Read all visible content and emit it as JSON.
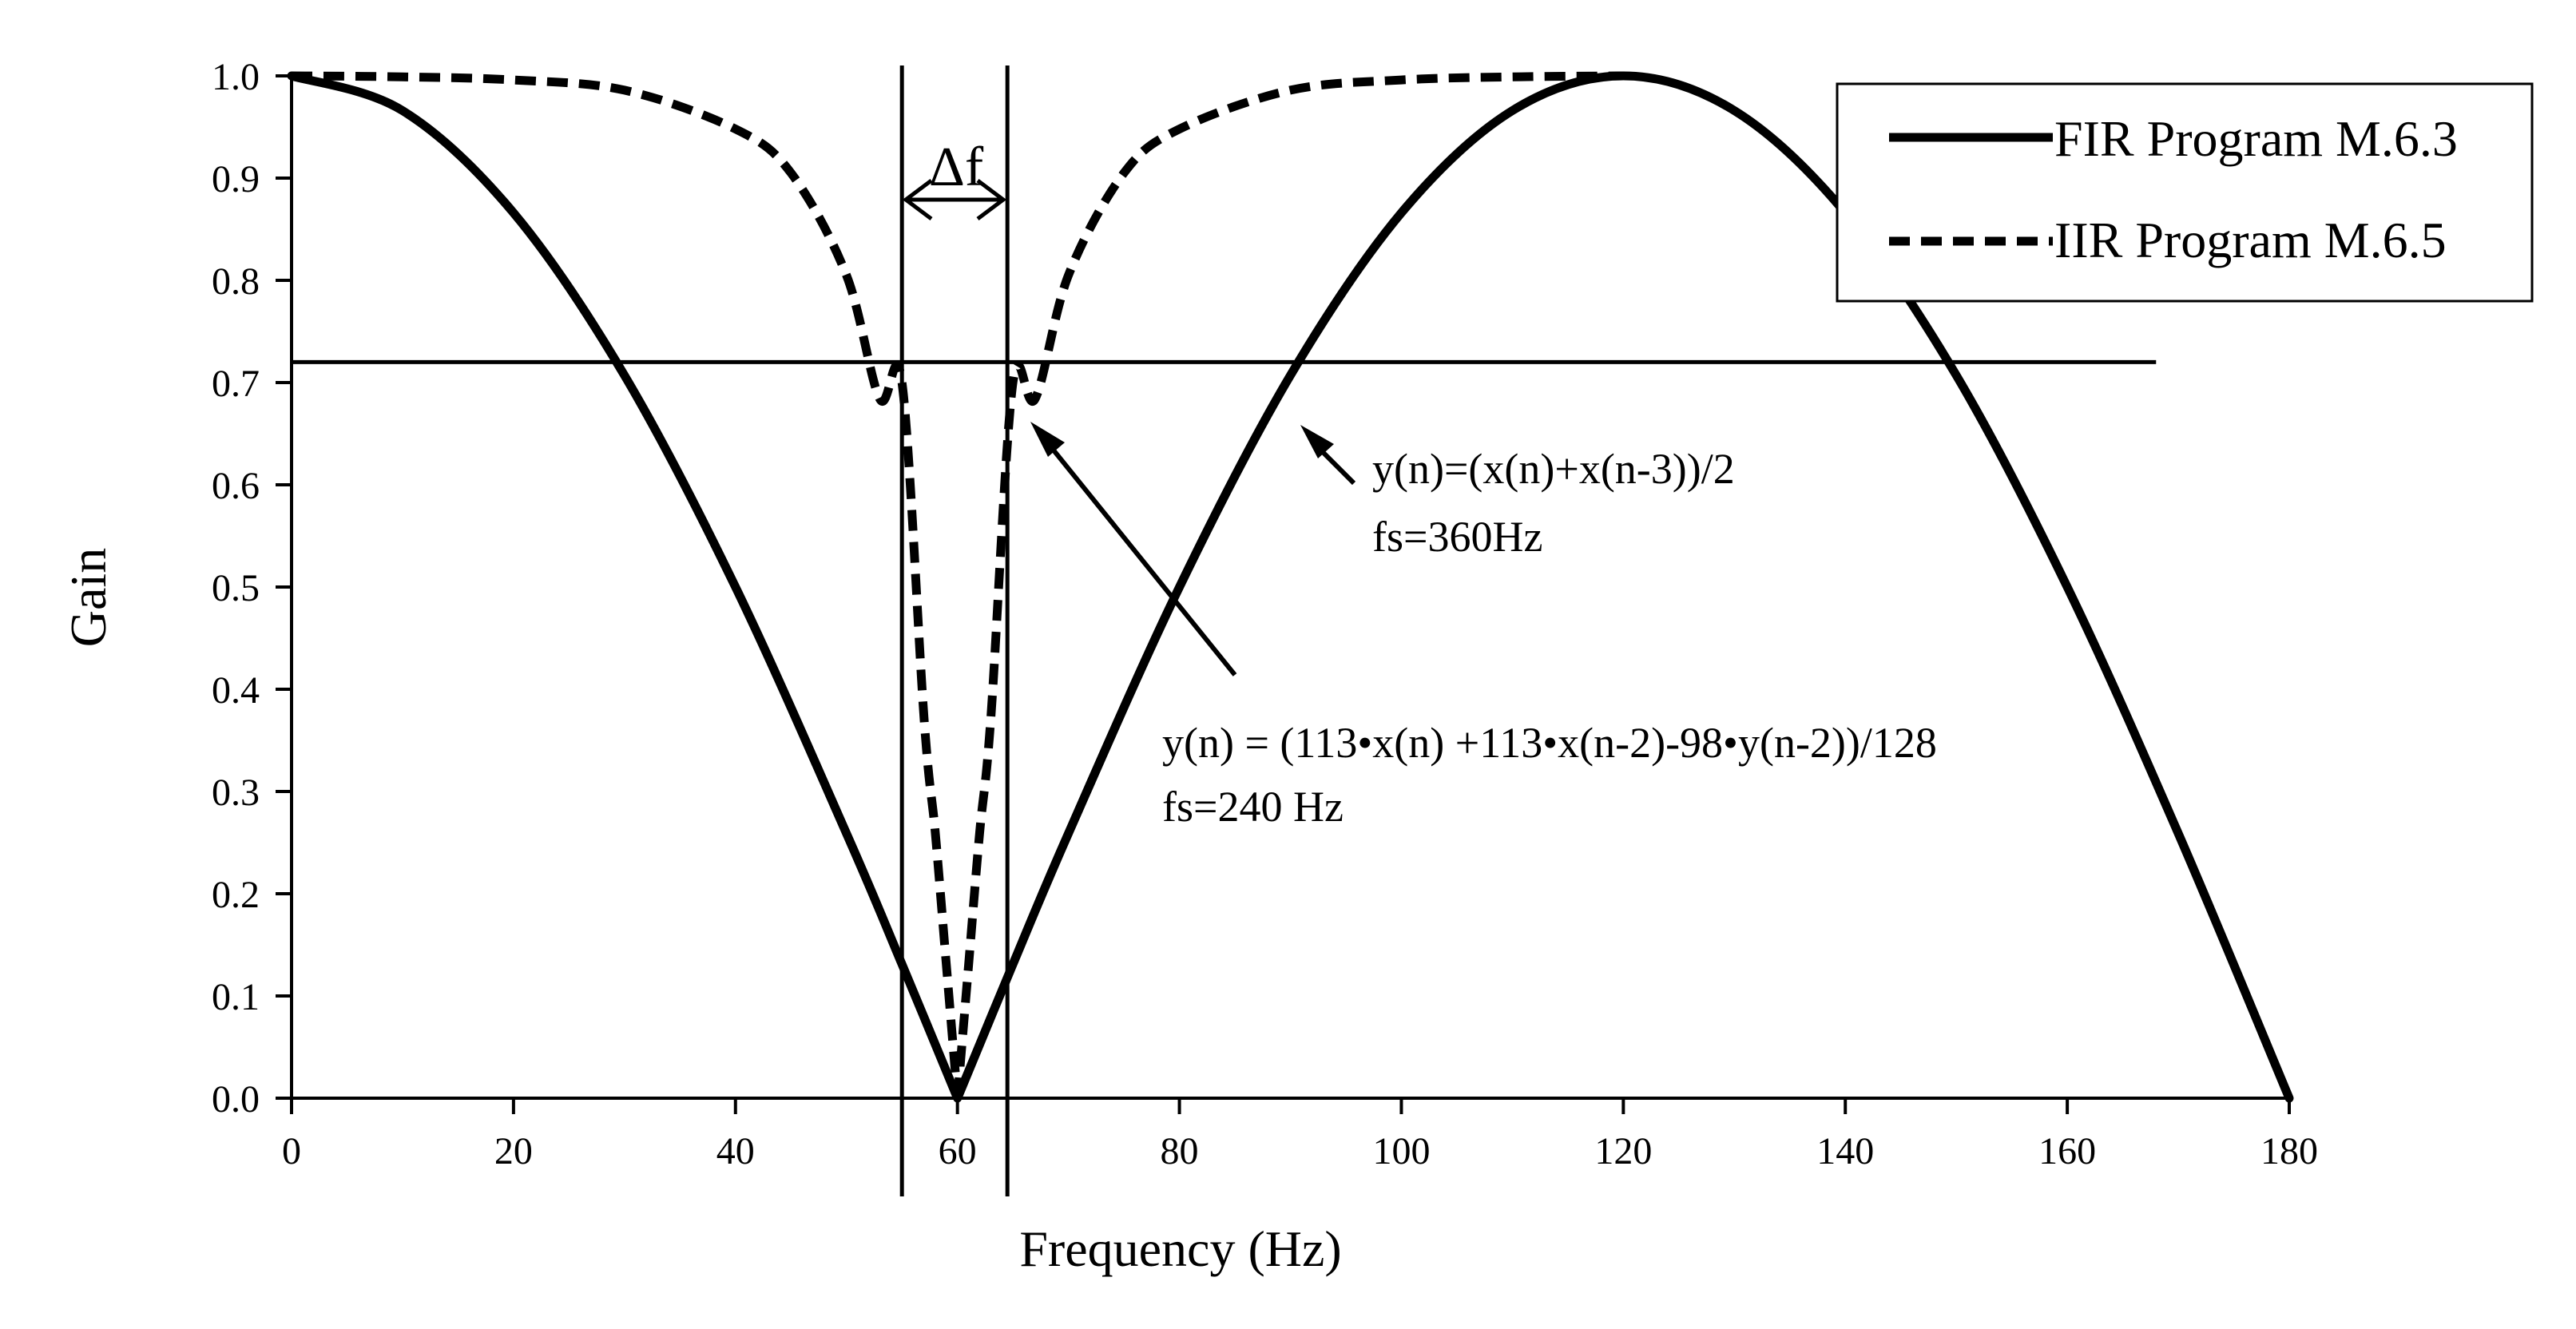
{
  "chart_data": {
    "type": "line",
    "title": "",
    "xlabel": "Frequency (Hz)",
    "ylabel": "Gain",
    "xlim": [
      0,
      180
    ],
    "ylim": [
      0,
      1.0
    ],
    "x_ticks": [
      "0",
      "20",
      "40",
      "60",
      "80",
      "100",
      "120",
      "140",
      "160",
      "180"
    ],
    "y_ticks": [
      "0.0",
      "0.1",
      "0.2",
      "0.3",
      "0.4",
      "0.5",
      "0.6",
      "0.7",
      "0.8",
      "0.9",
      "1.0"
    ],
    "grid": false,
    "legend_position": "top-right",
    "series": [
      {
        "name": "FIR Program M.6.3",
        "style": "solid",
        "color": "#000000",
        "x": [
          0,
          10,
          20,
          30,
          40,
          50,
          55,
          60,
          65,
          70,
          80,
          90,
          100,
          110,
          120,
          130,
          140,
          150,
          160,
          170,
          180
        ],
        "y": [
          1.0,
          0.966,
          0.866,
          0.707,
          0.5,
          0.259,
          0.131,
          0.0,
          0.131,
          0.259,
          0.5,
          0.707,
          0.866,
          0.966,
          1.0,
          0.966,
          0.866,
          0.707,
          0.5,
          0.259,
          0.0
        ]
      },
      {
        "name": "IIR Program M.6.5",
        "style": "dashed",
        "color": "#000000",
        "x": [
          0,
          10,
          20,
          30,
          40,
          45,
          50,
          53,
          55,
          57,
          58,
          59,
          60,
          61,
          62,
          63,
          65,
          67,
          70,
          75,
          80,
          90,
          100,
          110,
          120
        ],
        "y": [
          1.0,
          0.999,
          0.996,
          0.986,
          0.948,
          0.905,
          0.805,
          0.684,
          0.7,
          0.37,
          0.26,
          0.13,
          0.0,
          0.13,
          0.26,
          0.37,
          0.7,
          0.684,
          0.805,
          0.905,
          0.948,
          0.986,
          0.996,
          0.999,
          1.0
        ]
      }
    ],
    "reference_lines": {
      "horizontal_gain": 0.72,
      "horizontal_x_range": [
        0,
        168
      ],
      "vertical_x": [
        55,
        64.5
      ]
    },
    "annotations": {
      "delta_label": "Δf",
      "fir_equation": "y(n)=(x(n)+x(n-3))/2",
      "fir_fs": "fs=360Hz",
      "iir_equation": "y(n) = (113•x(n)  +113•x(n-2)-98•y(n-2))/128",
      "iir_fs": "fs=240 Hz"
    }
  }
}
